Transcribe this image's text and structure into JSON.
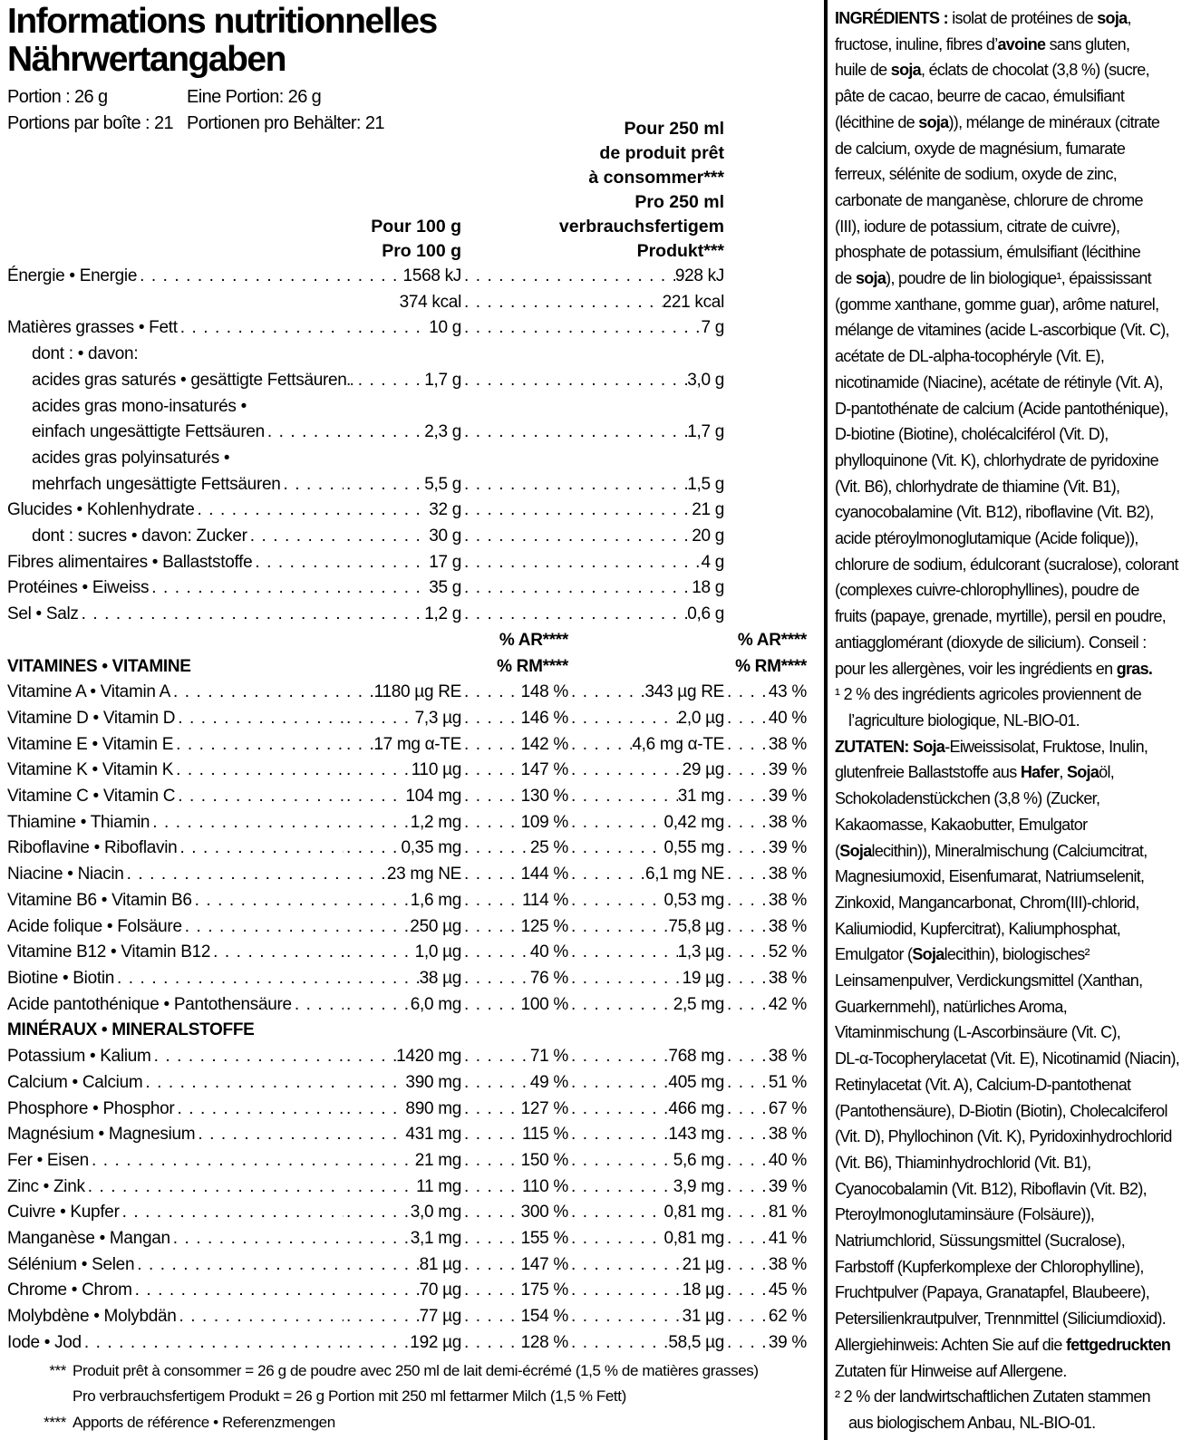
{
  "title": {
    "line1": "Informations nutritionnelles",
    "line2": "Nährwertangaben"
  },
  "serving": {
    "rows": [
      {
        "fr": "Portion : 26 g",
        "de": "Eine Portion: 26 g"
      },
      {
        "fr": "Portions par boîte : 21",
        "de": "Portionen pro Behälter: 21"
      }
    ]
  },
  "col_headers": {
    "per100": [
      "Pour 100 g",
      "Pro 100 g"
    ],
    "per250": [
      "Pour 250 ml",
      "de produit prêt",
      "à consommer***",
      "Pro 250 ml",
      "verbrauchsfertigem",
      "Produkt***"
    ],
    "ar": "% AR****",
    "rm": "% RM****"
  },
  "sections": {
    "vitamins": "VITAMINES • VITAMINE",
    "minerals": "MINÉRAUX • MINERALSTOFFE"
  },
  "macros": [
    {
      "label": "Énergie • Energie",
      "v100": "1568 kJ",
      "v250": "928 kJ"
    },
    {
      "label": "",
      "v100": "374 kcal",
      "v250": "221 kcal"
    },
    {
      "label": "Matières grasses • Fett",
      "v100": "10 g",
      "v250": "7 g"
    },
    {
      "label": "dont : • davon:",
      "indent": 1
    },
    {
      "label": "acides gras saturés • gesättigte Fettsäuren",
      "indent": 1,
      "v100": "1,7 g",
      "v250": "3,0 g"
    },
    {
      "label": "acides gras mono-insaturés •",
      "indent": 1
    },
    {
      "label": "einfach ungesättigte Fettsäuren",
      "indent": 1,
      "v100": "2,3 g",
      "v250": "1,7 g"
    },
    {
      "label": "acides gras polyinsaturés •",
      "indent": 1
    },
    {
      "label": "mehrfach ungesättigte Fettsäuren",
      "indent": 1,
      "v100": "5,5 g",
      "v250": "1,5 g"
    },
    {
      "label": "Glucides • Kohlenhydrate",
      "v100": "32 g",
      "v250": "21 g"
    },
    {
      "label": "dont : sucres • davon: Zucker",
      "indent": 1,
      "v100": "30 g",
      "v250": "20 g"
    },
    {
      "label": "Fibres alimentaires • Ballaststoffe",
      "v100": "17 g",
      "v250": "4 g"
    },
    {
      "label": "Protéines • Eiweiss",
      "v100": "35 g",
      "v250": "18 g"
    },
    {
      "label": "Sel • Salz",
      "v100": "1,2 g",
      "v250": "0,6 g"
    }
  ],
  "vitamins": [
    {
      "label": "Vitamine A • Vitamin A",
      "v100": "1180 µg RE",
      "p100": "148 %",
      "v250": "343 µg RE",
      "p250": "43 %"
    },
    {
      "label": "Vitamine D • Vitamin D",
      "v100": "7,3 µg",
      "p100": "146 %",
      "v250": "2,0 µg",
      "p250": "40 %"
    },
    {
      "label": "Vitamine E • Vitamin E",
      "v100": "17 mg α-TE",
      "p100": "142 %",
      "v250": "4,6 mg α-TE",
      "p250": "38 %"
    },
    {
      "label": "Vitamine K • Vitamin K",
      "v100": "110 µg",
      "p100": "147 %",
      "v250": "29 µg",
      "p250": "39 %"
    },
    {
      "label": "Vitamine C • Vitamin C",
      "v100": "104 mg",
      "p100": "130 %",
      "v250": "31 mg",
      "p250": "39 %"
    },
    {
      "label": "Thiamine • Thiamin",
      "v100": "1,2 mg",
      "p100": "109 %",
      "v250": "0,42 mg",
      "p250": "38 %"
    },
    {
      "label": "Riboflavine • Riboflavin",
      "v100": "0,35 mg",
      "p100": "25 %",
      "v250": "0,55 mg",
      "p250": "39 %"
    },
    {
      "label": "Niacine • Niacin",
      "v100": "23 mg NE",
      "p100": "144 %",
      "v250": "6,1 mg NE",
      "p250": "38 %"
    },
    {
      "label": "Vitamine B6 • Vitamin B6",
      "v100": "1,6 mg",
      "p100": "114 %",
      "v250": "0,53 mg",
      "p250": "38 %"
    },
    {
      "label": "Acide folique • Folsäure",
      "v100": "250 µg",
      "p100": "125 %",
      "v250": "75,8 µg",
      "p250": "38 %"
    },
    {
      "label": "Vitamine B12 • Vitamin B12",
      "v100": "1,0 µg",
      "p100": "40 %",
      "v250": "1,3 µg",
      "p250": "52 %"
    },
    {
      "label": "Biotine • Biotin",
      "v100": "38 µg",
      "p100": "76 %",
      "v250": "19 µg",
      "p250": "38 %"
    },
    {
      "label": "Acide pantothénique • Pantothensäure",
      "v100": "6,0 mg",
      "p100": "100 %",
      "v250": "2,5 mg",
      "p250": "42 %"
    }
  ],
  "minerals": [
    {
      "label": "Potassium • Kalium",
      "v100": "1420 mg",
      "p100": "71 %",
      "v250": "768 mg",
      "p250": "38 %"
    },
    {
      "label": "Calcium • Calcium",
      "v100": "390 mg",
      "p100": "49 %",
      "v250": "405 mg",
      "p250": "51 %"
    },
    {
      "label": "Phosphore • Phosphor",
      "v100": "890 mg",
      "p100": "127 %",
      "v250": "466 mg",
      "p250": "67 %"
    },
    {
      "label": "Magnésium • Magnesium",
      "v100": "431 mg",
      "p100": "115 %",
      "v250": "143 mg",
      "p250": "38 %"
    },
    {
      "label": "Fer • Eisen",
      "v100": "21 mg",
      "p100": "150 %",
      "v250": "5,6 mg",
      "p250": "40 %"
    },
    {
      "label": "Zinc • Zink",
      "v100": "11 mg",
      "p100": "110 %",
      "v250": "3,9 mg",
      "p250": "39 %"
    },
    {
      "label": "Cuivre • Kupfer",
      "v100": "3,0 mg",
      "p100": "300 %",
      "v250": "0,81 mg",
      "p250": "81 %"
    },
    {
      "label": "Manganèse • Mangan",
      "v100": "3,1 mg",
      "p100": "155 %",
      "v250": "0,81 mg",
      "p250": "41 %"
    },
    {
      "label": "Sélénium • Selen",
      "v100": "81 µg",
      "p100": "147 %",
      "v250": "21 µg",
      "p250": "38 %"
    },
    {
      "label": "Chrome • Chrom",
      "v100": "70 µg",
      "p100": "175 %",
      "v250": "18 µg",
      "p250": "45 %"
    },
    {
      "label": "Molybdène • Molybdän",
      "v100": "77 µg",
      "p100": "154 %",
      "v250": "31 µg",
      "p250": "62 %"
    },
    {
      "label": "Iode • Jod",
      "v100": "192 µg",
      "p100": "128 %",
      "v250": "58,5 µg",
      "p250": "39 %"
    }
  ],
  "footnotes": [
    {
      "marker": "***",
      "text": "Produit prêt à consommer = 26 g de poudre avec 250 ml de lait demi-écrémé (1,5 % de matières grasses)"
    },
    {
      "marker": "",
      "text": "Pro verbrauchsfertigem Produkt = 26 g Portion mit 250 ml fettarmer Milch (1,5 % Fett)"
    },
    {
      "marker": "****",
      "text": "Apports de référence • Referenzmengen"
    }
  ],
  "ingredients": {
    "lines": [
      {
        "t": "**INGRÉDIENTS :** isolat de protéines de **soja**,"
      },
      {
        "t": "fructose, inuline, fibres d’**avoine** sans gluten,"
      },
      {
        "t": "huile de **soja**, éclats de chocolat (3,8 %) (sucre,"
      },
      {
        "t": "pâte de cacao, beurre de cacao, émulsifiant"
      },
      {
        "t": "(lécithine de **soja**)), mélange de minéraux (citrate"
      },
      {
        "t": "de calcium, oxyde de magnésium, fumarate"
      },
      {
        "t": "ferreux, sélénite de sodium, oxyde de zinc,"
      },
      {
        "t": "carbonate de manganèse, chlorure de chrome"
      },
      {
        "t": "(III), iodure de potassium, citrate de cuivre),"
      },
      {
        "t": "phosphate de potassium, émulsifiant (lécithine"
      },
      {
        "t": "de **soja**), poudre de lin biologique¹, épaississant"
      },
      {
        "t": "(gomme xanthane, gomme guar), arôme naturel,"
      },
      {
        "t": "mélange de vitamines (acide L-ascorbique (Vit. C),"
      },
      {
        "t": "acétate de DL-alpha-tocophéryle (Vit. E),"
      },
      {
        "t": "nicotinamide (Niacine), acétate de rétinyle (Vit. A),"
      },
      {
        "t": "D-pantothénate de calcium (Acide pantothénique),"
      },
      {
        "t": "D-biotine (Biotine), cholécalciférol (Vit. D),"
      },
      {
        "t": "phylloquinone (Vit. K), chlorhydrate de pyridoxine"
      },
      {
        "t": "(Vit. B6), chlorhydrate de thiamine (Vit. B1),"
      },
      {
        "t": "cyanocobalamine (Vit. B12), riboflavine (Vit. B2),"
      },
      {
        "t": "acide ptéroylmonoglutamique (Acide folique)),"
      },
      {
        "t": "chlorure de sodium, édulcorant (sucralose), colorant"
      },
      {
        "t": "(complexes cuivre-chlorophyllines), poudre de"
      },
      {
        "t": "fruits (papaye, grenade, myrtille), persil en poudre,"
      },
      {
        "t": "antiagglomérant (dioxyde de silicium). Conseil :"
      },
      {
        "t": "pour les allergènes, voir les ingrédients en **gras.**"
      },
      {
        "t": "¹ 2 % des ingrédients agricoles proviennent de"
      },
      {
        "t": "l’agriculture biologique, NL-BIO-01.",
        "ind": true
      },
      {
        "t": "**ZUTATEN: Soja**-Eiweissisolat, Fruktose, Inulin,"
      },
      {
        "t": "glutenfreie Ballaststoffe aus **Hafer**, **Soja**öl,"
      },
      {
        "t": "Schokoladenstückchen (3,8 %) (Zucker,"
      },
      {
        "t": "Kakaomasse, Kakaobutter, Emulgator"
      },
      {
        "t": "(**Soja**lecithin)), Mineralmischung (Calciumcitrat,"
      },
      {
        "t": "Magnesiumoxid, Eisenfumarat, Natriumselenit,"
      },
      {
        "t": "Zinkoxid, Mangancarbonat, Chrom(III)-chlorid,"
      },
      {
        "t": "Kaliumiodid, Kupfercitrat), Kaliumphosphat,"
      },
      {
        "t": "Emulgator (**Soja**lecithin), biologisches²"
      },
      {
        "t": "Leinsamenpulver, Verdickungsmittel (Xanthan,"
      },
      {
        "t": "Guarkernmehl), natürliches Aroma,"
      },
      {
        "t": "Vitaminmischung (L-Ascorbinsäure (Vit. C),"
      },
      {
        "t": "DL-α-Tocopherylacetat (Vit. E), Nicotinamid (Niacin),"
      },
      {
        "t": "Retinylacetat (Vit. A), Calcium-D-pantothenat"
      },
      {
        "t": "(Pantothensäure), D-Biotin (Biotin), Cholecalciferol"
      },
      {
        "t": "(Vit. D), Phyllochinon (Vit. K), Pyridoxinhydrochlorid"
      },
      {
        "t": "(Vit. B6), Thiaminhydrochlorid (Vit. B1),"
      },
      {
        "t": "Cyanocobalamin (Vit. B12), Riboflavin (Vit. B2),"
      },
      {
        "t": "Pteroylmonoglutaminsäure (Folsäure)),"
      },
      {
        "t": "Natriumchlorid, Süssungsmittel (Sucralose),"
      },
      {
        "t": "Farbstoff (Kupferkomplexe der Chlorophylline),"
      },
      {
        "t": "Fruchtpulver (Papaya, Granatapfel, Blaubeere),"
      },
      {
        "t": "Petersilienkrautpulver, Trennmittel (Siliciumdioxid)."
      },
      {
        "t": "Allergiehinweis: Achten Sie auf die **fettgedruckten**"
      },
      {
        "t": "Zutaten für Hinweise auf Allergene."
      },
      {
        "t": "² 2 % der landwirtschaftlichen Zutaten stammen"
      },
      {
        "t": "aus biologischem Anbau, NL-BIO-01.",
        "ind": true
      }
    ]
  }
}
